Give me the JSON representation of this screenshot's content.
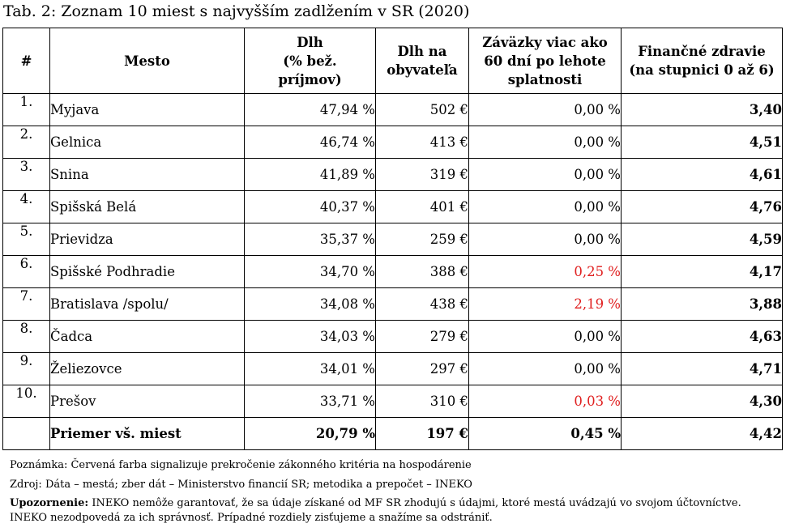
{
  "title": "Tab. 2: Zoznam 10 miest s najvyšším zadlžením v SR (2020)",
  "headers": {
    "num": "#",
    "city": "Mesto",
    "debt_l1": "Dlh",
    "debt_l2": "(% bež.",
    "debt_l3": "príjmov)",
    "debt_pc_l1": "Dlh na",
    "debt_pc_l2": "obyvateľa",
    "overdue_l1": "Záväzky viac ako",
    "overdue_l2": "60 dní po lehote",
    "overdue_l3": "splatnosti",
    "health_l1": "Finančné zdravie",
    "health_l2": "(na stupnici 0 až 6)"
  },
  "rows": [
    {
      "num": "1.",
      "city": "Myjava",
      "debt": "47,94 %",
      "debt_pc": "502 €",
      "overdue": "0,00 %",
      "overdue_red": false,
      "health": "3,40"
    },
    {
      "num": "2.",
      "city": "Gelnica",
      "debt": "46,74 %",
      "debt_pc": "413 €",
      "overdue": "0,00 %",
      "overdue_red": false,
      "health": "4,51"
    },
    {
      "num": "3.",
      "city": "Snina",
      "debt": "41,89 %",
      "debt_pc": "319 €",
      "overdue": "0,00 %",
      "overdue_red": false,
      "health": "4,61"
    },
    {
      "num": "4.",
      "city": "Spišská Belá",
      "debt": "40,37 %",
      "debt_pc": "401 €",
      "overdue": "0,00 %",
      "overdue_red": false,
      "health": "4,76"
    },
    {
      "num": "5.",
      "city": "Prievidza",
      "debt": "35,37 %",
      "debt_pc": "259 €",
      "overdue": "0,00 %",
      "overdue_red": false,
      "health": "4,59"
    },
    {
      "num": "6.",
      "city": "Spišské Podhradie",
      "debt": "34,70 %",
      "debt_pc": "388 €",
      "overdue": "0,25 %",
      "overdue_red": true,
      "health": "4,17"
    },
    {
      "num": "7.",
      "city": "Bratislava /spolu/",
      "debt": "34,08 %",
      "debt_pc": "438 €",
      "overdue": "2,19 %",
      "overdue_red": true,
      "health": "3,88"
    },
    {
      "num": "8.",
      "city": "Čadca",
      "debt": "34,03 %",
      "debt_pc": "279 €",
      "overdue": "0,00 %",
      "overdue_red": false,
      "health": "4,63"
    },
    {
      "num": "9.",
      "city": "Želiezovce",
      "debt": "34,01 %",
      "debt_pc": "297 €",
      "overdue": "0,00 %",
      "overdue_red": false,
      "health": "4,71"
    },
    {
      "num": "10.",
      "city": "Prešov",
      "debt": "33,71 %",
      "debt_pc": "310 €",
      "overdue": "0,03 %",
      "overdue_red": true,
      "health": "4,30"
    }
  ],
  "average": {
    "label": "Priemer vš. miest",
    "debt": "20,79 %",
    "debt_pc": "197 €",
    "overdue": "0,45 %",
    "health": "4,42"
  },
  "notes": {
    "note": "Poznámka: Červená farba signalizuje prekročenie zákonného kritéria na hospodárenie",
    "source": "Zdroj: Dáta – mestá; zber dát – Ministerstvo financií SR; metodika a prepočet – INEKO",
    "warning_label": "Upozornenie:",
    "warning_l1": " INEKO nemôže garantovať, že sa údaje získané od MF SR zhodujú s údajmi, ktoré mestá uvádzajú vo svojom účtovníctve.",
    "warning_l2": "INEKO nezodpovedá za ich správnosť. Prípadné rozdiely zisťujeme a snažíme sa odstrániť."
  },
  "colors": {
    "red": "#e02020"
  }
}
